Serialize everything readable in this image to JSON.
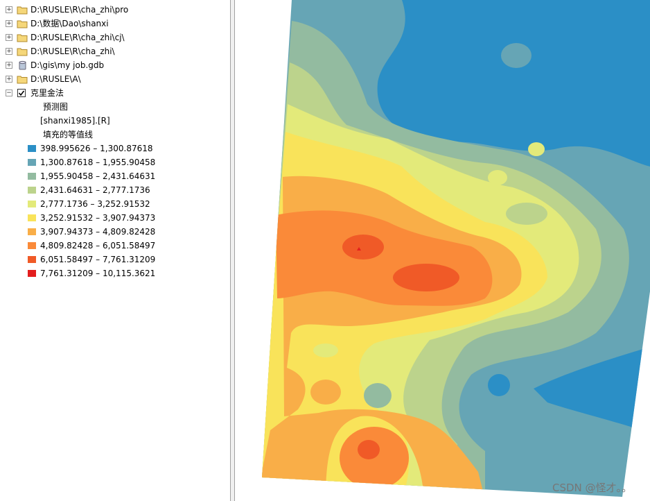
{
  "tree": [
    {
      "label": "D:\\RUSLE\\R\\cha_zhi\\pro",
      "icon": "folder"
    },
    {
      "label": "D:\\数据\\Dao\\shanxi",
      "icon": "folder"
    },
    {
      "label": "D:\\RUSLE\\R\\cha_zhi\\cj\\",
      "icon": "folder"
    },
    {
      "label": "D:\\RUSLE\\R\\cha_zhi\\",
      "icon": "folder"
    },
    {
      "label": "D:\\gis\\my job.gdb",
      "icon": "database"
    },
    {
      "label": "D:\\RUSLE\\A\\",
      "icon": "folder"
    }
  ],
  "layer": {
    "name": "克里金法",
    "checked": true,
    "sublabels": [
      "预测图",
      "[shanxi1985].[R]",
      "填充的等值线"
    ],
    "legend": [
      {
        "label": "398.995626 – 1,300.87618",
        "color": "#2b8fc6"
      },
      {
        "label": "1,300.87618 – 1,955.90458",
        "color": "#66a5b5"
      },
      {
        "label": "1,955.90458 – 2,431.64631",
        "color": "#93bba0"
      },
      {
        "label": "2,431.64631 – 2,777.1736",
        "color": "#bcd38c"
      },
      {
        "label": "2,777.1736 – 3,252.91532",
        "color": "#e3ea7a"
      },
      {
        "label": "3,252.91532 – 3,907.94373",
        "color": "#f9e35a"
      },
      {
        "label": "3,907.94373 – 4,809.82428",
        "color": "#f9ae48"
      },
      {
        "label": "4,809.82428 – 6,051.58497",
        "color": "#fa8a39"
      },
      {
        "label": "6,051.58497 – 7,761.31209",
        "color": "#f05a27"
      },
      {
        "label": "7,761.31209 – 10,115.3621",
        "color": "#e31e1e"
      }
    ]
  },
  "watermark": "CSDN @怪才。。"
}
